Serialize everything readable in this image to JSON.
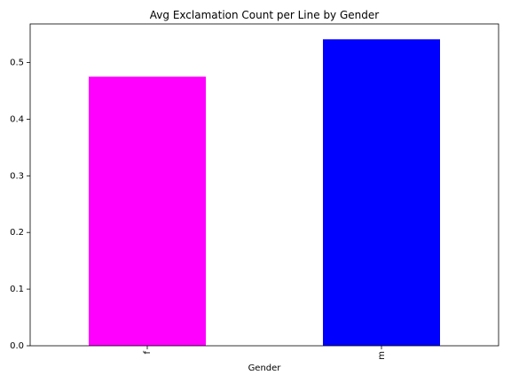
{
  "chart_data": {
    "type": "bar",
    "title": "Avg Exclamation Count per Line by Gender",
    "xlabel": "Gender",
    "ylabel": "",
    "categories": [
      "f",
      "m"
    ],
    "values": [
      0.475,
      0.541
    ],
    "colors": [
      "#ff00ff",
      "#0000ff"
    ],
    "ylim": [
      0,
      0.5681
    ],
    "yticks": [
      0.0,
      0.1,
      0.2,
      0.3,
      0.4,
      0.5
    ],
    "ytick_labels": [
      "0.0",
      "0.1",
      "0.2",
      "0.3",
      "0.4",
      "0.5"
    ],
    "grid": false,
    "legend": "none"
  }
}
